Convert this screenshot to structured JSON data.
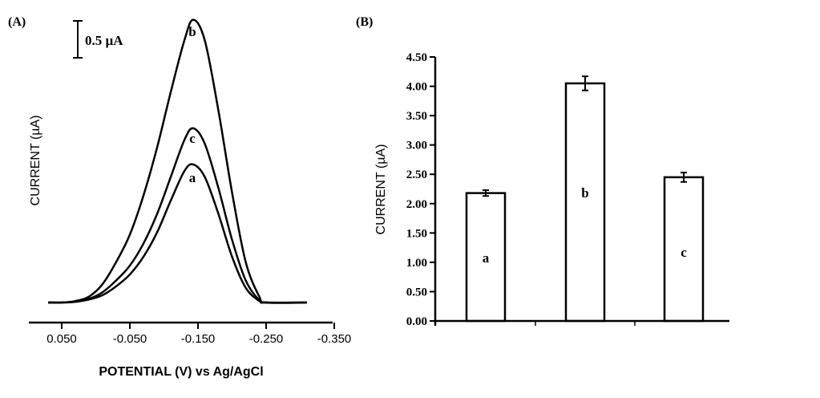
{
  "chart_data": [
    {
      "panel_label": "(A)",
      "type": "line",
      "title": "",
      "xlabel": "POTENTIAL (V) vs Ag/AgCl",
      "ylabel": "CURRENT (µA)",
      "xlim": [
        0.05,
        -0.35
      ],
      "x_ticks": [
        "0.050",
        "-0.050",
        "-0.150",
        "-0.250",
        "-0.350"
      ],
      "scale_bar": {
        "label": "0.5 µA",
        "value": 0.5
      },
      "y_units": "µA above baseline",
      "series": [
        {
          "name": "b",
          "x": [
            0.07,
            0.05,
            0.03,
            0.01,
            -0.01,
            -0.03,
            -0.05,
            -0.07,
            -0.09,
            -0.11,
            -0.13,
            -0.143,
            -0.16,
            -0.18,
            -0.2,
            -0.22,
            -0.24,
            -0.25,
            -0.31
          ],
          "y": [
            0,
            0,
            0.02,
            0.08,
            0.25,
            0.55,
            0.92,
            1.45,
            2.1,
            2.85,
            3.55,
            3.83,
            3.55,
            2.6,
            1.49,
            0.55,
            0.08,
            0,
            0
          ]
        },
        {
          "name": "c",
          "x": [
            0.07,
            0.05,
            0.03,
            0.01,
            -0.01,
            -0.03,
            -0.05,
            -0.07,
            -0.09,
            -0.11,
            -0.13,
            -0.143,
            -0.16,
            -0.18,
            -0.2,
            -0.22,
            -0.24,
            -0.25,
            -0.31
          ],
          "y": [
            0,
            0,
            0.01,
            0.05,
            0.14,
            0.3,
            0.5,
            0.8,
            1.2,
            1.7,
            2.2,
            2.36,
            2.15,
            1.55,
            0.85,
            0.3,
            0.03,
            0,
            0
          ]
        },
        {
          "name": "a",
          "x": [
            0.07,
            0.05,
            0.03,
            0.01,
            -0.01,
            -0.03,
            -0.05,
            -0.07,
            -0.09,
            -0.11,
            -0.13,
            -0.143,
            -0.16,
            -0.18,
            -0.2,
            -0.22,
            -0.24,
            -0.25,
            -0.31
          ],
          "y": [
            0,
            0,
            0.01,
            0.04,
            0.1,
            0.22,
            0.38,
            0.62,
            0.95,
            1.38,
            1.78,
            1.87,
            1.7,
            1.2,
            0.62,
            0.2,
            0.02,
            0,
            0
          ]
        }
      ],
      "grid": false
    },
    {
      "panel_label": "(B)",
      "type": "bar",
      "title": "",
      "xlabel": "",
      "ylabel": "CURRENT (µA)",
      "ylim": [
        0,
        4.5
      ],
      "y_ticks": [
        "0.00",
        "0.50",
        "1.00",
        "1.50",
        "2.00",
        "2.50",
        "3.00",
        "3.50",
        "4.00",
        "4.50"
      ],
      "categories": [
        "a",
        "b",
        "c"
      ],
      "values": [
        2.18,
        4.05,
        2.45
      ],
      "errors": [
        0.05,
        0.12,
        0.08
      ],
      "grid": false
    }
  ]
}
